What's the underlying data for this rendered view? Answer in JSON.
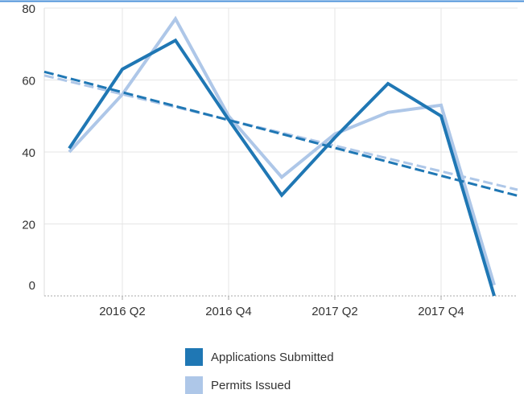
{
  "chart_data": {
    "type": "line",
    "categories": [
      null,
      "2016 Q2",
      null,
      "2016 Q4",
      null,
      "2017 Q2",
      null,
      "2017 Q4",
      null
    ],
    "series": [
      {
        "name": "Applications Submitted",
        "color": "#1f77b4",
        "values": [
          41,
          63,
          71,
          49,
          28,
          44,
          59,
          50,
          0
        ]
      },
      {
        "name": "Permits Issued",
        "color": "#aec7e8",
        "values": [
          40,
          56,
          77,
          50,
          33,
          45,
          51,
          53,
          3
        ]
      }
    ],
    "ylim": [
      0,
      80
    ],
    "yticks": [
      0,
      20,
      40,
      60,
      80
    ],
    "grid": true,
    "trendline": true,
    "legend": "bottom"
  }
}
